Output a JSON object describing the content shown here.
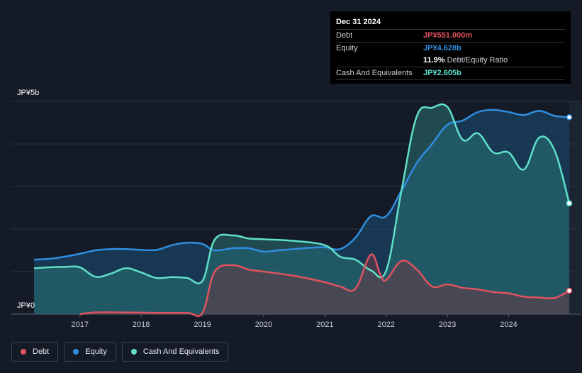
{
  "tooltip": {
    "date": "Dec 31 2024",
    "debt_label": "Debt",
    "debt_value": "JP¥551.000m",
    "equity_label": "Equity",
    "equity_value": "JP¥4.628b",
    "ratio_value": "11.9%",
    "ratio_label": "Debt/Equity Ratio",
    "cash_label": "Cash And Equivalents",
    "cash_value": "JP¥2.605b"
  },
  "legend": {
    "debt": "Debt",
    "equity": "Equity",
    "cash": "Cash And Equivalents"
  },
  "axis": {
    "y_top_label": "JP¥5b",
    "y_bottom_label": "JP¥0"
  },
  "colors": {
    "debt": "#e0525e",
    "equity": "#2f8ee0",
    "cash": "#5fe0c8",
    "background": "#151b26"
  },
  "chart_data": {
    "type": "area",
    "title": "",
    "xlabel": "",
    "ylabel": "",
    "unit": "JP¥ billions",
    "xlim": [
      2016.25,
      2024.99
    ],
    "ylim": [
      0,
      5
    ],
    "x_ticks": [
      "2017",
      "2018",
      "2019",
      "2020",
      "2021",
      "2022",
      "2023",
      "2024"
    ],
    "grid": true,
    "legend_position": "bottom-left",
    "series": [
      {
        "name": "Debt",
        "color": "#e0525e",
        "points": [
          [
            2017.0,
            0.0
          ],
          [
            2017.25,
            0.04
          ],
          [
            2017.75,
            0.04
          ],
          [
            2018.25,
            0.03
          ],
          [
            2018.75,
            0.03
          ],
          [
            2019.0,
            0.03
          ],
          [
            2019.2,
            1.0
          ],
          [
            2019.5,
            1.15
          ],
          [
            2019.75,
            1.05
          ],
          [
            2020.0,
            1.0
          ],
          [
            2020.5,
            0.9
          ],
          [
            2021.0,
            0.75
          ],
          [
            2021.25,
            0.65
          ],
          [
            2021.5,
            0.6
          ],
          [
            2021.75,
            1.4
          ],
          [
            2021.9,
            0.95
          ],
          [
            2022.0,
            0.8
          ],
          [
            2022.25,
            1.25
          ],
          [
            2022.5,
            1.05
          ],
          [
            2022.75,
            0.65
          ],
          [
            2023.0,
            0.7
          ],
          [
            2023.25,
            0.62
          ],
          [
            2023.5,
            0.58
          ],
          [
            2023.75,
            0.52
          ],
          [
            2024.0,
            0.49
          ],
          [
            2024.25,
            0.41
          ],
          [
            2024.5,
            0.39
          ],
          [
            2024.75,
            0.38
          ],
          [
            2024.99,
            0.551
          ]
        ]
      },
      {
        "name": "Equity",
        "color": "#2f8ee0",
        "points": [
          [
            2016.25,
            1.28
          ],
          [
            2016.5,
            1.3
          ],
          [
            2016.75,
            1.35
          ],
          [
            2017.0,
            1.42
          ],
          [
            2017.25,
            1.5
          ],
          [
            2017.5,
            1.53
          ],
          [
            2017.75,
            1.53
          ],
          [
            2018.0,
            1.51
          ],
          [
            2018.25,
            1.51
          ],
          [
            2018.5,
            1.62
          ],
          [
            2018.75,
            1.68
          ],
          [
            2019.0,
            1.65
          ],
          [
            2019.2,
            1.5
          ],
          [
            2019.5,
            1.55
          ],
          [
            2019.75,
            1.55
          ],
          [
            2020.0,
            1.47
          ],
          [
            2020.25,
            1.5
          ],
          [
            2020.5,
            1.53
          ],
          [
            2020.75,
            1.56
          ],
          [
            2021.0,
            1.57
          ],
          [
            2021.25,
            1.53
          ],
          [
            2021.5,
            1.8
          ],
          [
            2021.75,
            2.3
          ],
          [
            2022.0,
            2.3
          ],
          [
            2022.25,
            2.9
          ],
          [
            2022.5,
            3.55
          ],
          [
            2022.75,
            4.0
          ],
          [
            2023.0,
            4.45
          ],
          [
            2023.25,
            4.55
          ],
          [
            2023.5,
            4.75
          ],
          [
            2023.75,
            4.8
          ],
          [
            2024.0,
            4.75
          ],
          [
            2024.25,
            4.68
          ],
          [
            2024.5,
            4.78
          ],
          [
            2024.75,
            4.66
          ],
          [
            2024.99,
            4.628
          ]
        ]
      },
      {
        "name": "Cash And Equivalents",
        "color": "#5fe0c8",
        "points": [
          [
            2016.25,
            1.08
          ],
          [
            2016.5,
            1.1
          ],
          [
            2016.75,
            1.11
          ],
          [
            2017.0,
            1.1
          ],
          [
            2017.25,
            0.88
          ],
          [
            2017.5,
            0.95
          ],
          [
            2017.75,
            1.08
          ],
          [
            2018.0,
            0.98
          ],
          [
            2018.25,
            0.85
          ],
          [
            2018.5,
            0.87
          ],
          [
            2018.75,
            0.85
          ],
          [
            2019.0,
            0.78
          ],
          [
            2019.2,
            1.75
          ],
          [
            2019.5,
            1.85
          ],
          [
            2019.75,
            1.78
          ],
          [
            2020.0,
            1.76
          ],
          [
            2020.5,
            1.72
          ],
          [
            2021.0,
            1.62
          ],
          [
            2021.25,
            1.35
          ],
          [
            2021.5,
            1.28
          ],
          [
            2021.75,
            1.03
          ],
          [
            2022.0,
            1.02
          ],
          [
            2022.25,
            2.9
          ],
          [
            2022.5,
            4.65
          ],
          [
            2022.75,
            4.85
          ],
          [
            2023.0,
            4.87
          ],
          [
            2023.25,
            4.1
          ],
          [
            2023.5,
            4.25
          ],
          [
            2023.75,
            3.8
          ],
          [
            2024.0,
            3.8
          ],
          [
            2024.25,
            3.4
          ],
          [
            2024.5,
            4.15
          ],
          [
            2024.75,
            3.85
          ],
          [
            2024.99,
            2.605
          ]
        ]
      }
    ]
  }
}
